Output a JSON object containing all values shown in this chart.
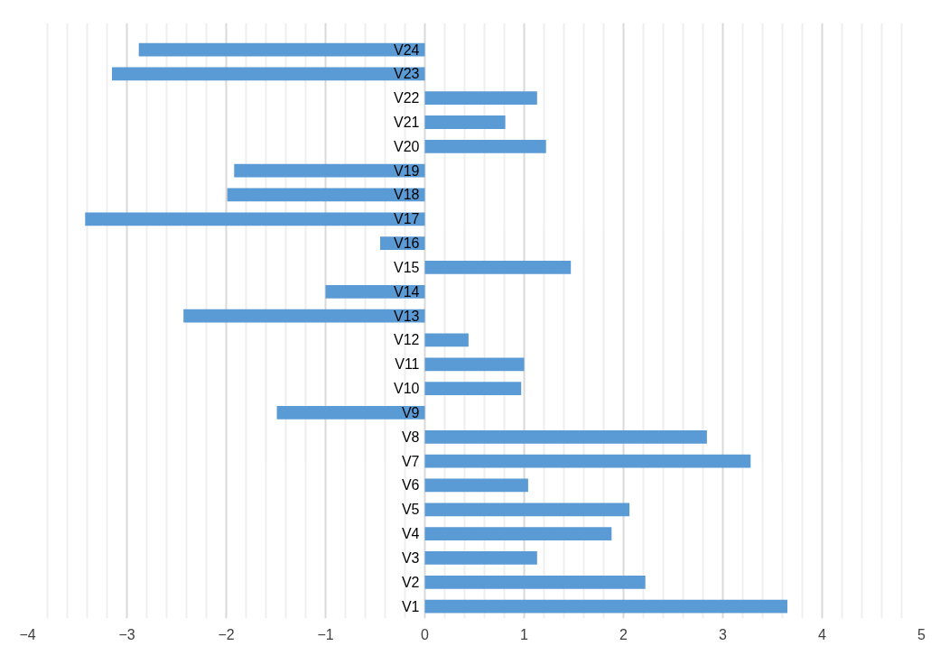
{
  "chart_data": {
    "type": "bar",
    "orientation": "horizontal",
    "categories": [
      "V24",
      "V23",
      "V22",
      "V21",
      "V20",
      "V19",
      "V18",
      "V17",
      "V16",
      "V15",
      "V14",
      "V13",
      "V12",
      "V11",
      "V10",
      "V9",
      "V8",
      "V7",
      "V6",
      "V5",
      "V4",
      "V3",
      "V2",
      "V1"
    ],
    "values": [
      -2.88,
      -3.15,
      1.13,
      0.81,
      1.22,
      -1.92,
      -1.99,
      -3.42,
      -0.45,
      1.47,
      -1.0,
      -2.43,
      0.44,
      1.0,
      0.97,
      -1.49,
      2.84,
      3.28,
      1.04,
      2.06,
      1.88,
      1.13,
      2.22,
      3.65
    ],
    "color": "#5b9bd5",
    "xlim": [
      -4,
      5
    ],
    "xticks": [
      -4,
      -3,
      -2,
      -1,
      0,
      1,
      2,
      3,
      4,
      5
    ],
    "grid": "x"
  }
}
